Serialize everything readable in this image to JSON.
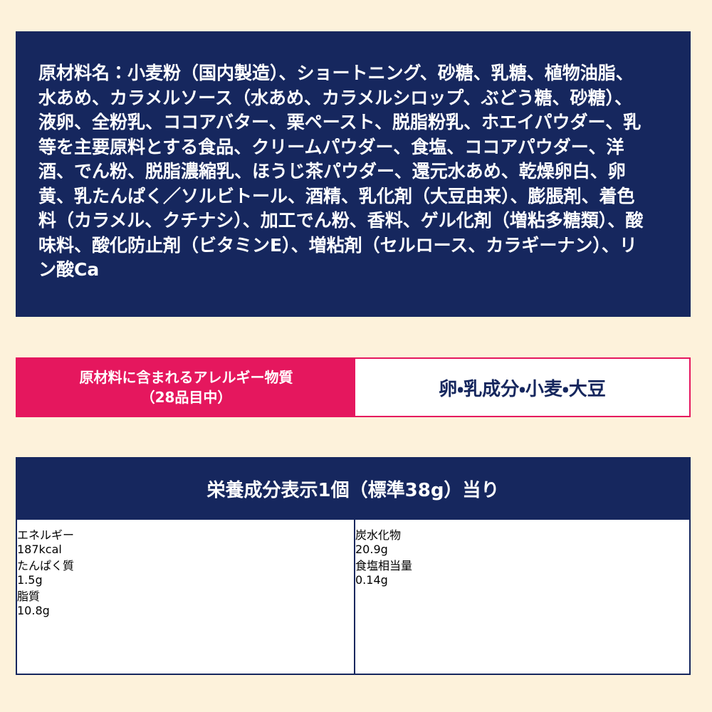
{
  "ingredients": {
    "lines": [
      "原材料名：小麦粉（国内製造）、ショートニング、砂糖、乳糖、植物油脂、",
      "水あめ、カラメルソース（水あめ、カラメルシロップ、ぶどう糖、砂糖）、",
      "液卵、全粉乳、ココアバター、栗ペースト、脱脂粉乳、ホエイパウダー、乳",
      "等を主要原料とする食品、クリームパウダー、食塩、ココアパウダー、洋",
      "酒、でん粉、脱脂濃縮乳、ほうじ茶パウダー、還元水あめ、乾燥卵白、卵",
      "黄、乳たんぱく／ソルビトール、酒精、乳化剤（大豆由来）、膨脹剤、着色",
      "料（カラメル、クチナシ）、加工でん粉、香料、ゲル化剤（増粘多糖類）、酸",
      "味料、酸化防止剤（ビタミンE）、増粘剤（セルロース、カラギーナン）、リ",
      "ン酸Ca"
    ]
  },
  "allergen": {
    "label": [
      "原材料に含まれるアレルギー物質",
      "（28品目中）"
    ],
    "value": "卵・乳成分・小麦・大豆"
  },
  "nutrition": {
    "title": "栄養成分表示1個（標準38g）当り",
    "left": [
      [
        "エネルギー",
        "187kcal"
      ],
      [
        "たんぱく質",
        "1.5g"
      ],
      [
        "脂質",
        "10.8g"
      ]
    ],
    "right": [
      [
        "炭水化物",
        "20.9g"
      ],
      [
        "食塩相当量",
        "0.14g"
      ]
    ]
  }
}
